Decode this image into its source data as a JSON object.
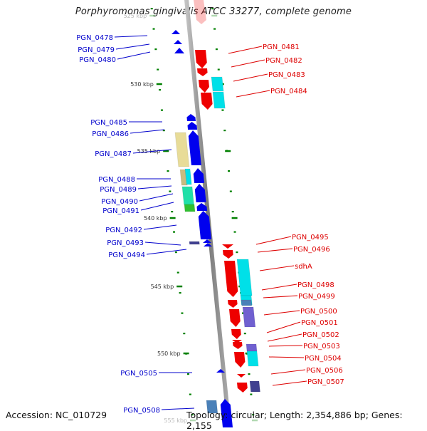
{
  "title": "Porphyromonas gingivalis ATCC 33277, complete genome",
  "footer": {
    "accession": "Accession: NC_010729",
    "topology": "Topology: circular; Length: 2,354,886 bp; Genes: 2,155"
  },
  "colors": {
    "reverse_strand": "#0000ee",
    "forward_strand": "#ee0000",
    "backbone": "#8a8a8a",
    "tick": "#008000",
    "label_left": "#0000cc",
    "label_right": "#dd0000"
  },
  "ticks": [
    {
      "label": "525 kbp",
      "faded": true
    },
    {
      "label": "530 kbp"
    },
    {
      "label": "535 kbp"
    },
    {
      "label": "540 kbp"
    },
    {
      "label": "545 kbp"
    },
    {
      "label": "550 kbp"
    },
    {
      "label": "555 kbp",
      "faded": true
    }
  ],
  "genes_reverse": [
    {
      "name": "PGN_0478"
    },
    {
      "name": "PGN_0479"
    },
    {
      "name": "PGN_0480"
    },
    {
      "name": "PGN_0485"
    },
    {
      "name": "PGN_0486"
    },
    {
      "name": "PGN_0487"
    },
    {
      "name": "PGN_0488"
    },
    {
      "name": "PGN_0489"
    },
    {
      "name": "PGN_0490"
    },
    {
      "name": "PGN_0491"
    },
    {
      "name": "PGN_0492"
    },
    {
      "name": "PGN_0493"
    },
    {
      "name": "PGN_0494"
    },
    {
      "name": "PGN_0505"
    },
    {
      "name": "PGN_0508"
    }
  ],
  "genes_forward": [
    {
      "name": "PGN_0481"
    },
    {
      "name": "PGN_0482"
    },
    {
      "name": "PGN_0483"
    },
    {
      "name": "PGN_0484"
    },
    {
      "name": "PGN_0495"
    },
    {
      "name": "PGN_0496"
    },
    {
      "name": "sdhA"
    },
    {
      "name": "PGN_0498"
    },
    {
      "name": "PGN_0499"
    },
    {
      "name": "PGN_0500"
    },
    {
      "name": "PGN_0501"
    },
    {
      "name": "PGN_0502"
    },
    {
      "name": "PGN_0503"
    },
    {
      "name": "PGN_0504"
    },
    {
      "name": "PGN_0506"
    },
    {
      "name": "PGN_0507"
    }
  ],
  "cog_colors": {
    "tan": "#e8dc98",
    "olive": "#c8bc80",
    "cyan": "#00e0e8",
    "teal": "#20e0a8",
    "green": "#30c030",
    "purple": "#7060d0",
    "steel": "#4a80b8",
    "navy": "#404090"
  }
}
